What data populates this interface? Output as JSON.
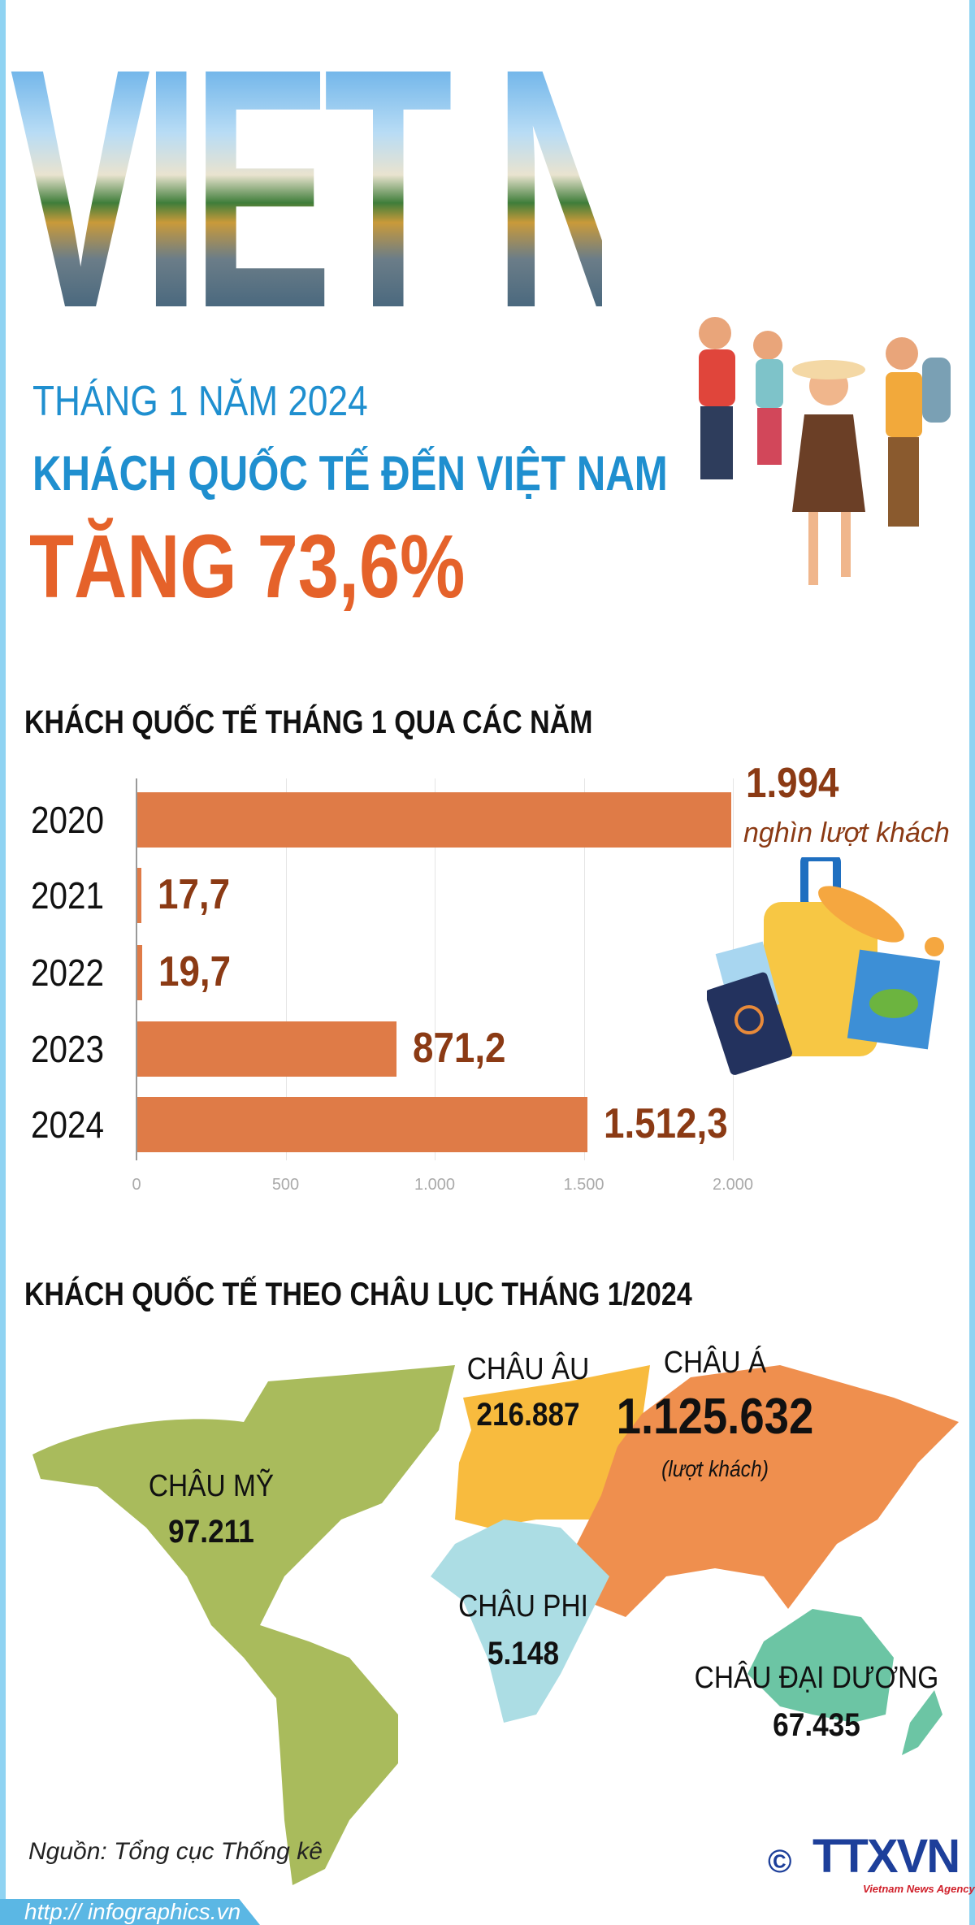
{
  "hero": {
    "word": "VIET NAM"
  },
  "headline": {
    "line1": "THÁNG 1 NĂM 2024",
    "line2": "KHÁCH QUỐC TẾ ĐẾN VIỆT NAM",
    "line3": "TĂNG 73,6%"
  },
  "colors": {
    "blue": "#1f8fcf",
    "orange": "#e5622a",
    "bar": "#df7b47",
    "value": "#8b3a14",
    "america": "#a9bb5c",
    "europe": "#f8bb3e",
    "asia": "#ef8f4e",
    "africa": "#acdde4",
    "oceania": "#6cc5a4"
  },
  "chart_data": [
    {
      "type": "bar",
      "orientation": "horizontal",
      "title": "KHÁCH QUỐC TẾ THÁNG 1 QUA CÁC NĂM",
      "categories": [
        "2020",
        "2021",
        "2022",
        "2023",
        "2024"
      ],
      "values": [
        1994,
        17.7,
        19.7,
        871.2,
        1512.3
      ],
      "value_labels": [
        "1.994",
        "17,7",
        "19,7",
        "871,2",
        "1.512,3"
      ],
      "unit": "nghìn lượt khách",
      "xlim": [
        0,
        2000
      ],
      "xticks": [
        "0",
        "500",
        "1.000",
        "1.500",
        "2.000"
      ],
      "grid": true
    },
    {
      "type": "map",
      "title": "KHÁCH QUỐC TẾ THEO CHÂU LỤC THÁNG 1/2024",
      "regions": [
        {
          "name": "CHÂU MỸ",
          "value": "97.211"
        },
        {
          "name": "CHÂU ÂU",
          "value": "216.887"
        },
        {
          "name": "CHÂU Á",
          "value": "1.125.632",
          "note": "(lượt khách)"
        },
        {
          "name": "CHÂU PHI",
          "value": "5.148"
        },
        {
          "name": "CHÂU ĐẠI DƯƠNG",
          "value": "67.435"
        }
      ]
    }
  ],
  "footer": {
    "source": "Nguồn: Tổng cục Thống kê",
    "url": "http:// infographics.vn",
    "logo": "TTXVN",
    "logo_sub": "Vietnam News Agency",
    "copyright": "©"
  }
}
